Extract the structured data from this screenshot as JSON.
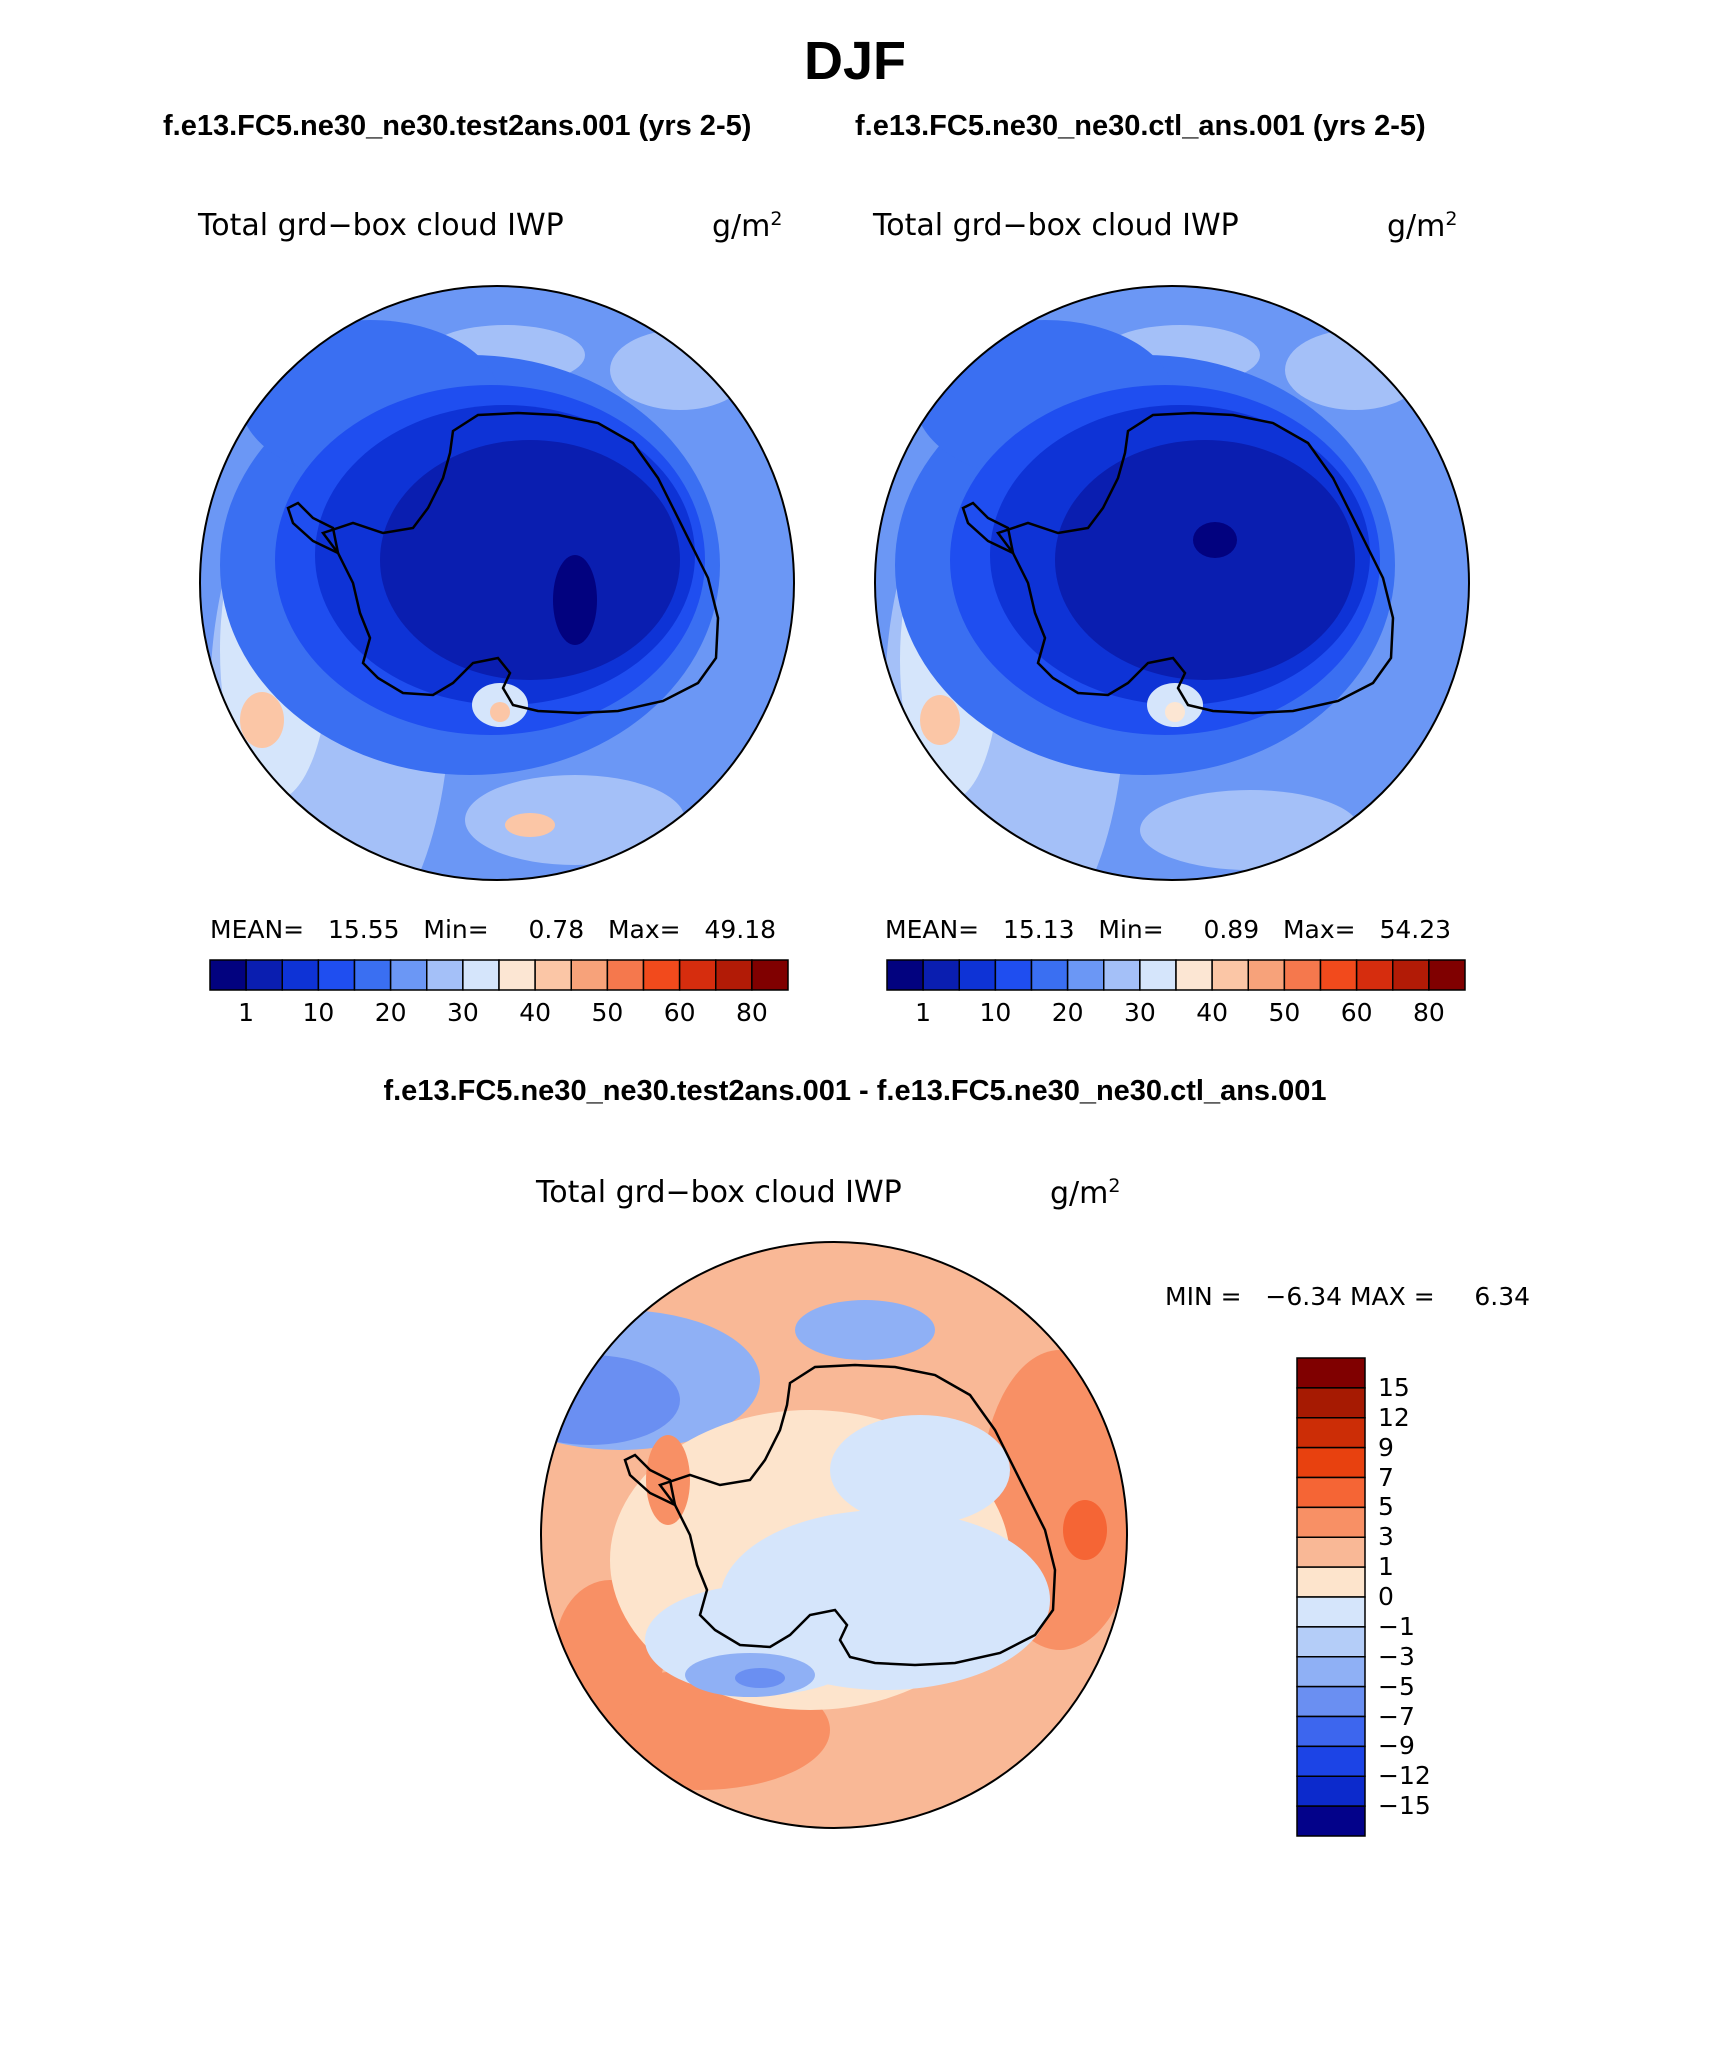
{
  "title": "DJF",
  "panels": [
    {
      "case": "f.e13.FC5.ne30_ne30.test2ans.001 (yrs 2-5)",
      "variable": "Total grd−box cloud IWP",
      "units_base": "g/m",
      "units_exp": "2",
      "stats": {
        "mean_label": "MEAN=",
        "mean": "15.55",
        "min_label": "Min=",
        "min": "0.78",
        "max_label": "Max=",
        "max": "49.18"
      }
    },
    {
      "case": "f.e13.FC5.ne30_ne30.ctl_ans.001 (yrs 2-5)",
      "variable": "Total grd−box cloud IWP",
      "units_base": "g/m",
      "units_exp": "2",
      "stats": {
        "mean_label": "MEAN=",
        "mean": "15.13",
        "min_label": "Min=",
        "min": "0.89",
        "max_label": "Max=",
        "max": "54.23"
      }
    }
  ],
  "colorbar": {
    "tick_labels": [
      "1",
      "10",
      "20",
      "30",
      "40",
      "50",
      "60",
      "80"
    ],
    "colors": [
      "#02027f",
      "#0a1eb0",
      "#0e33d6",
      "#1f4ef0",
      "#3a6ff2",
      "#6b97f5",
      "#a4c0f8",
      "#d5e5fb",
      "#fce6d3",
      "#fbc6a6",
      "#f7a27a",
      "#f5784d",
      "#f24a1c",
      "#d62d0e",
      "#b21b06",
      "#800000"
    ]
  },
  "difference": {
    "title": "f.e13.FC5.ne30_ne30.test2ans.001 - f.e13.FC5.ne30_ne30.ctl_ans.001",
    "variable": "Total grd−box cloud IWP",
    "units_base": "g/m",
    "units_exp": "2",
    "minmax": {
      "min_label": "MIN =",
      "min": "−6.34",
      "max_label": "MAX =",
      "max": "6.34"
    },
    "colorbar": {
      "tick_labels": [
        "15",
        "12",
        "9",
        "7",
        "5",
        "3",
        "1",
        "0",
        "−1",
        "−3",
        "−5",
        "−7",
        "−9",
        "−12",
        "−15"
      ],
      "colors": [
        "#800000",
        "#a61a02",
        "#cc2d06",
        "#e8410f",
        "#f56535",
        "#f89065",
        "#f9b896",
        "#fde4cc",
        "#d5e5fb",
        "#b4cdf8",
        "#8fb0f5",
        "#6a8ff2",
        "#3d66ee",
        "#1c44e6",
        "#0c2acc",
        "#03028a"
      ]
    }
  }
}
